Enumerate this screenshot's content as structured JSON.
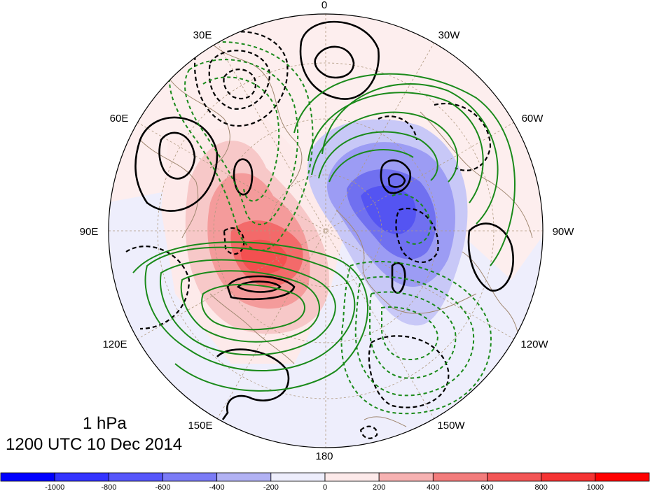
{
  "longitude_labels": [
    "0",
    "30W",
    "60W",
    "90W",
    "120W",
    "150W",
    "180",
    "150E",
    "120E",
    "90E",
    "60E",
    "30E"
  ],
  "caption": {
    "level": "1 hPa",
    "time": "1200 UTC 10 Dec 2014"
  },
  "colorbar": {
    "tick_labels": [
      "-1000",
      "-800",
      "-600",
      "-400",
      "-200",
      "0",
      "200",
      "400",
      "600",
      "800",
      "1000"
    ],
    "colors": [
      "#0000ff",
      "#3333ff",
      "#5656fb",
      "#7b7bf6",
      "#b2b2f4",
      "#eeeefc",
      "#fdeaea",
      "#f7b2b2",
      "#f37c7c",
      "#f35656",
      "#f53333",
      "#ff0000"
    ]
  },
  "map": {
    "projection": "north polar stereographic",
    "grid": "dashed lat/lon graticule",
    "colors": {
      "ocean_background_pos": "#fdeeee",
      "ocean_background_neg": "#eeeefc",
      "positive_contour": "#000000",
      "negative_contour_green": "#1a8a1a",
      "coastline": "#a08770"
    }
  }
}
